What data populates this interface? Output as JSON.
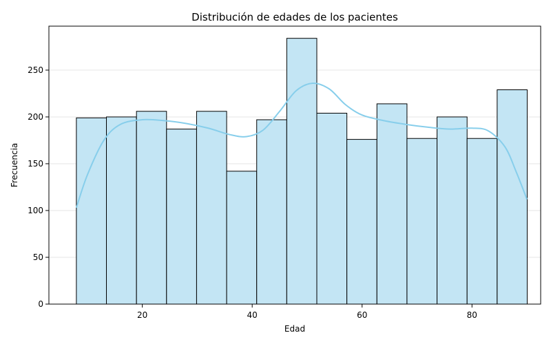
{
  "chart_data": {
    "type": "bar",
    "title": "Distribución de edades de los pacientes",
    "xlabel": "Edad",
    "ylabel": "Frecuencia",
    "xlim": [
      3,
      92.5
    ],
    "ylim": [
      0,
      297
    ],
    "xticks": [
      20,
      40,
      60,
      80
    ],
    "yticks": [
      0,
      50,
      100,
      150,
      200,
      250
    ],
    "grid": "horizontal",
    "bins": {
      "start": 8,
      "width": 5.47,
      "values": [
        199,
        200,
        206,
        187,
        206,
        142,
        197,
        284,
        204,
        176,
        214,
        177,
        200,
        177,
        229
      ]
    },
    "kde": {
      "x": [
        8,
        10,
        13,
        16,
        20,
        24,
        28,
        32,
        36,
        39,
        42,
        45,
        48,
        51,
        54,
        57,
        60,
        64,
        68,
        72,
        76,
        80,
        83,
        86,
        88,
        90
      ],
      "y": [
        103,
        138,
        175,
        192,
        197,
        196,
        193,
        188,
        181,
        179,
        186,
        206,
        228,
        236,
        230,
        213,
        202,
        196,
        192,
        189,
        187,
        188,
        185,
        168,
        142,
        112
      ]
    },
    "colors": {
      "bar_fill": "#c3e5f4",
      "bar_edge": "#000000",
      "kde_line": "#87ceeb",
      "grid": "#e6e6e6"
    }
  }
}
